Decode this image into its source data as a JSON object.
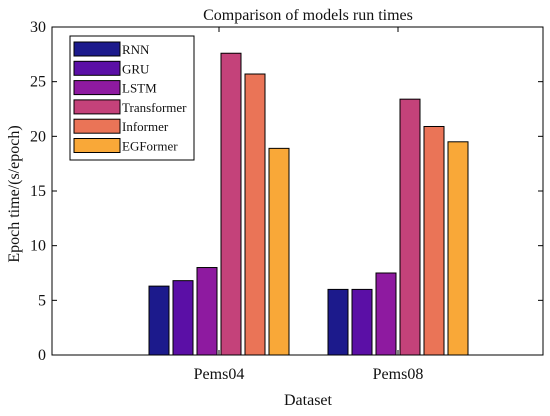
{
  "chart_data": {
    "type": "bar",
    "title": "Comparison of models run times",
    "xlabel": "Dataset",
    "ylabel": "Epoch  time/(s/epoch)",
    "categories": [
      "Pems04",
      "Pems08"
    ],
    "ylim": [
      0,
      30
    ],
    "yticks": [
      0,
      5,
      10,
      15,
      20,
      25,
      30
    ],
    "grid": false,
    "legend_position": "top-left",
    "series": [
      {
        "name": "RNN",
        "values": [
          6.3,
          6.0
        ],
        "color": "#1c1a8c"
      },
      {
        "name": "GRU",
        "values": [
          6.8,
          6.0
        ],
        "color": "#5b0fa6"
      },
      {
        "name": "LSTM",
        "values": [
          8.0,
          7.5
        ],
        "color": "#8e1aa0"
      },
      {
        "name": "Transformer",
        "values": [
          27.6,
          23.4
        ],
        "color": "#c4427a"
      },
      {
        "name": "Informer",
        "values": [
          25.7,
          20.9
        ],
        "color": "#ea7457"
      },
      {
        "name": "EGFormer",
        "values": [
          18.9,
          19.5
        ],
        "color": "#f9a838"
      }
    ]
  }
}
